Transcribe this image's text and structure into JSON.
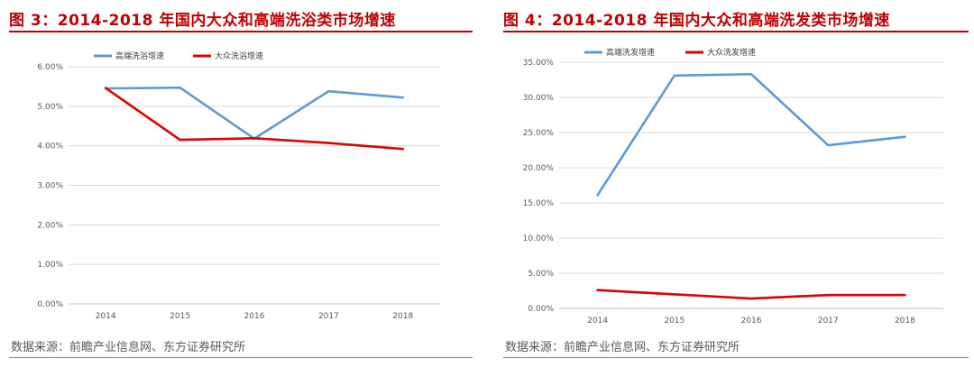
{
  "source_label": "数据来源：前瞻产业信息网、东方证券研究所",
  "chart_data": [
    {
      "type": "line",
      "title": "图 3：2014-2018 年国内大众和高端洗浴类市场增速",
      "categories": [
        "2014",
        "2015",
        "2016",
        "2017",
        "2018"
      ],
      "series": [
        {
          "name": "高端洗浴增速",
          "color": "#5b9bd5",
          "values": [
            5.45,
            5.47,
            4.18,
            5.38,
            5.22
          ]
        },
        {
          "name": "大众洗浴增速",
          "color": "#e00000",
          "values": [
            5.46,
            4.15,
            4.19,
            4.07,
            3.92
          ]
        }
      ],
      "ylim": [
        0,
        6
      ],
      "yticks": [
        "0.00%",
        "1.00%",
        "2.00%",
        "3.00%",
        "4.00%",
        "5.00%",
        "6.00%"
      ],
      "grid": true,
      "legend": "top-left"
    },
    {
      "type": "line",
      "title": "图 4：2014-2018 年国内大众和高端洗发类市场增速",
      "categories": [
        "2014",
        "2015",
        "2016",
        "2017",
        "2018"
      ],
      "series": [
        {
          "name": "高端洗发增速",
          "color": "#5b9bd5",
          "values": [
            16.1,
            33.1,
            33.3,
            23.2,
            24.4
          ]
        },
        {
          "name": "大众洗发增速",
          "color": "#e00000",
          "values": [
            2.6,
            2.0,
            1.4,
            1.9,
            1.9
          ]
        }
      ],
      "ylim": [
        0,
        35
      ],
      "yticks": [
        "0.00%",
        "5.00%",
        "10.00%",
        "15.00%",
        "20.00%",
        "25.00%",
        "30.00%",
        "35.00%"
      ],
      "grid": true,
      "legend": "top-left"
    }
  ]
}
